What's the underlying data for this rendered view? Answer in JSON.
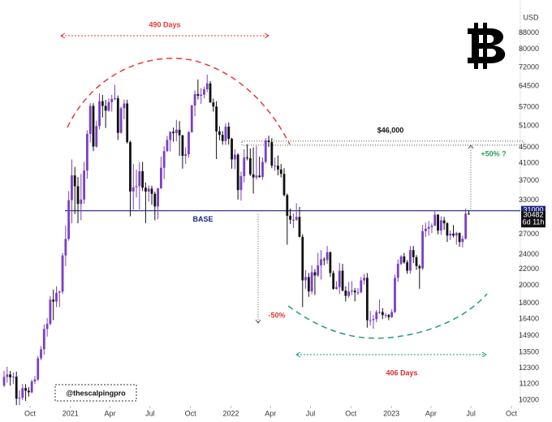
{
  "chart_data": {
    "type": "candlestick",
    "currency": "USD",
    "up_color": "#7b3fc4",
    "down_color": "#111111",
    "log_scale": true,
    "ylim": [
      9860,
      106900
    ],
    "yticks": [
      10200,
      11200,
      12300,
      13500,
      14900,
      16400,
      18000,
      20000,
      22000,
      24000,
      27000,
      33000,
      37000,
      41000,
      45000,
      51000,
      57000,
      64500,
      72000,
      80000,
      88000
    ],
    "xlim": [
      -1.33,
      167.5
    ],
    "xticks": [
      {
        "value": 8.43,
        "label": "Oct"
      },
      {
        "value": 21.57,
        "label": "2021"
      },
      {
        "value": 34.43,
        "label": "Apr"
      },
      {
        "value": 47.43,
        "label": "Jul"
      },
      {
        "value": 60.57,
        "label": "Oct"
      },
      {
        "value": 73.71,
        "label": "2022"
      },
      {
        "value": 86.57,
        "label": "Apr"
      },
      {
        "value": 99.57,
        "label": "Jul"
      },
      {
        "value": 112.71,
        "label": "Oct"
      },
      {
        "value": 125.86,
        "label": "2023"
      },
      {
        "value": 138.71,
        "label": "Apr"
      },
      {
        "value": 151.71,
        "label": "Jul"
      },
      {
        "value": 164.86,
        "label": "Oct"
      }
    ],
    "base": {
      "value": 31000,
      "label": "BASE"
    },
    "resistance": {
      "value": 46000,
      "label": "$46,000"
    },
    "countdown": "6d 11h",
    "annotations": {
      "top_span": "490 Days",
      "bottom_span": "406 Days",
      "upside": "+50% ?",
      "downside": "-50%",
      "handle": "@thescalpingpro"
    },
    "candles": [
      [
        11100,
        12100,
        11000,
        11680
      ],
      [
        11680,
        12400,
        11300,
        11850
      ],
      [
        11850,
        12100,
        11100,
        11650
      ],
      [
        11650,
        12000,
        11200,
        11700
      ],
      [
        11700,
        12050,
        9900,
        10280
      ],
      [
        10280,
        10800,
        9900,
        10330
      ],
      [
        10330,
        11200,
        10200,
        10940
      ],
      [
        10940,
        11200,
        10150,
        10770
      ],
      [
        10770,
        11000,
        10400,
        10670
      ],
      [
        10670,
        11500,
        10600,
        11380
      ],
      [
        11380,
        11750,
        11200,
        11500
      ],
      [
        11500,
        13200,
        11400,
        13030
      ],
      [
        13030,
        14000,
        12900,
        13740
      ],
      [
        13740,
        15900,
        13300,
        15480
      ],
      [
        15480,
        16500,
        14800,
        15960
      ],
      [
        15960,
        18800,
        15800,
        18400
      ],
      [
        18400,
        19500,
        16300,
        18180
      ],
      [
        18180,
        19900,
        17600,
        19150
      ],
      [
        19150,
        19400,
        17600,
        19270
      ],
      [
        19270,
        24200,
        19000,
        23850
      ],
      [
        23850,
        28400,
        22400,
        26270
      ],
      [
        26270,
        34800,
        26000,
        33000
      ],
      [
        33000,
        41900,
        28800,
        38150
      ],
      [
        38150,
        40100,
        30400,
        35800
      ],
      [
        35800,
        37800,
        28800,
        32260
      ],
      [
        32260,
        38500,
        29300,
        33110
      ],
      [
        33110,
        41300,
        32300,
        39250
      ],
      [
        39250,
        49700,
        37400,
        48700
      ],
      [
        48700,
        58300,
        46300,
        57400
      ],
      [
        57400,
        58300,
        44000,
        45200
      ],
      [
        45200,
        52600,
        44900,
        51000
      ],
      [
        51000,
        61800,
        50000,
        59000
      ],
      [
        59000,
        61200,
        53600,
        57400
      ],
      [
        57400,
        59500,
        50400,
        55800
      ],
      [
        55800,
        60000,
        55500,
        58700
      ],
      [
        58700,
        61200,
        55500,
        59800
      ],
      [
        59800,
        64900,
        59300,
        60000
      ],
      [
        60000,
        61000,
        47000,
        49000
      ],
      [
        49000,
        57200,
        48800,
        56600
      ],
      [
        56600,
        59600,
        53000,
        58200
      ],
      [
        58200,
        59500,
        46000,
        46400
      ],
      [
        46400,
        46800,
        30000,
        34700
      ],
      [
        34700,
        40800,
        31200,
        35600
      ],
      [
        35600,
        39500,
        33500,
        35800
      ],
      [
        35800,
        41200,
        31200,
        39100
      ],
      [
        39100,
        41300,
        34800,
        35500
      ],
      [
        35500,
        36600,
        28800,
        34700
      ],
      [
        34700,
        36000,
        32700,
        35300
      ],
      [
        35300,
        35900,
        32100,
        34250
      ],
      [
        34250,
        34700,
        29300,
        31800
      ],
      [
        31800,
        35400,
        29500,
        35400
      ],
      [
        35400,
        42600,
        35200,
        39900
      ],
      [
        39900,
        45300,
        37300,
        44000
      ],
      [
        44000,
        48100,
        43800,
        47000
      ],
      [
        47000,
        49400,
        43900,
        49300
      ],
      [
        49300,
        50500,
        46500,
        48900
      ],
      [
        48900,
        52900,
        46600,
        49900
      ],
      [
        49900,
        52500,
        42800,
        48300
      ],
      [
        48300,
        48400,
        39700,
        42800
      ],
      [
        42800,
        45000,
        40800,
        43200
      ],
      [
        43200,
        49500,
        42300,
        49200
      ],
      [
        49200,
        57800,
        49000,
        57500
      ],
      [
        57500,
        62900,
        54000,
        61500
      ],
      [
        61500,
        67000,
        59600,
        60900
      ],
      [
        60900,
        63700,
        58100,
        61300
      ],
      [
        61300,
        64200,
        60000,
        63300
      ],
      [
        63300,
        69000,
        62200,
        65500
      ],
      [
        65500,
        66400,
        58400,
        58600
      ],
      [
        58600,
        59900,
        55500,
        57200
      ],
      [
        57200,
        59000,
        42000,
        49400
      ],
      [
        49400,
        50900,
        46900,
        48400
      ],
      [
        48400,
        49500,
        45700,
        46700
      ],
      [
        46700,
        51800,
        45600,
        50800
      ],
      [
        50800,
        52100,
        45700,
        47300
      ],
      [
        47300,
        47600,
        39700,
        41900
      ],
      [
        41900,
        44500,
        39600,
        43100
      ],
      [
        43100,
        43500,
        33100,
        35000
      ],
      [
        35000,
        39000,
        32900,
        38000
      ],
      [
        38000,
        44500,
        36600,
        42400
      ],
      [
        42400,
        45800,
        41700,
        42200
      ],
      [
        42200,
        44700,
        38000,
        38400
      ],
      [
        38400,
        45000,
        34300,
        37700
      ],
      [
        37700,
        45400,
        37200,
        38100
      ],
      [
        38100,
        42600,
        37600,
        37800
      ],
      [
        37800,
        42400,
        37200,
        41300
      ],
      [
        41300,
        47500,
        40900,
        46800
      ],
      [
        46800,
        48200,
        45100,
        46400
      ],
      [
        46400,
        47500,
        39800,
        40400
      ],
      [
        40400,
        42400,
        39200,
        40400
      ],
      [
        40400,
        42900,
        38200,
        39500
      ],
      [
        39500,
        40800,
        37700,
        38500
      ],
      [
        38500,
        39800,
        33700,
        34000
      ],
      [
        34000,
        34300,
        25400,
        30100
      ],
      [
        30100,
        31400,
        28700,
        29400
      ],
      [
        29400,
        30500,
        28000,
        29400
      ],
      [
        29400,
        32400,
        29200,
        29900
      ],
      [
        29900,
        31700,
        26500,
        26600
      ],
      [
        26600,
        27000,
        17600,
        20600
      ],
      [
        20600,
        21900,
        19600,
        21000
      ],
      [
        21000,
        21500,
        18700,
        19300
      ],
      [
        19300,
        22500,
        19000,
        21600
      ],
      [
        21600,
        22000,
        18900,
        21200
      ],
      [
        21200,
        24200,
        21000,
        22500
      ],
      [
        22500,
        24600,
        20700,
        23300
      ],
      [
        23300,
        23600,
        22500,
        23200
      ],
      [
        23200,
        25200,
        22700,
        24300
      ],
      [
        24300,
        24400,
        21000,
        21500
      ],
      [
        21500,
        21800,
        19500,
        19600
      ],
      [
        19600,
        20500,
        19500,
        19800
      ],
      [
        19800,
        22800,
        19000,
        21800
      ],
      [
        21800,
        22700,
        19300,
        19400
      ],
      [
        19400,
        19900,
        18200,
        18800
      ],
      [
        18800,
        20400,
        18600,
        19300
      ],
      [
        19300,
        20500,
        18900,
        19400
      ],
      [
        19400,
        19700,
        18200,
        19200
      ],
      [
        19200,
        19700,
        18900,
        19200
      ],
      [
        19200,
        21000,
        19100,
        20600
      ],
      [
        20600,
        21400,
        20100,
        20900
      ],
      [
        20900,
        21500,
        15600,
        16300
      ],
      [
        16300,
        17200,
        15800,
        16300
      ],
      [
        16300,
        16800,
        15500,
        16400
      ],
      [
        16400,
        17300,
        16100,
        17100
      ],
      [
        17100,
        18400,
        16900,
        17100
      ],
      [
        17100,
        17500,
        16400,
        16800
      ],
      [
        16800,
        17000,
        16500,
        16800
      ],
      [
        16800,
        16900,
        16300,
        16600
      ],
      [
        16600,
        17400,
        16500,
        17100
      ],
      [
        17100,
        21300,
        17000,
        20900
      ],
      [
        20900,
        23300,
        20400,
        22700
      ],
      [
        22700,
        23900,
        22500,
        23700
      ],
      [
        23700,
        24200,
        22700,
        22900
      ],
      [
        22900,
        23200,
        21400,
        21800
      ],
      [
        21800,
        25200,
        21400,
        24600
      ],
      [
        24600,
        25200,
        22800,
        23600
      ],
      [
        23600,
        23900,
        21900,
        22400
      ],
      [
        22400,
        22600,
        19600,
        22100
      ],
      [
        22100,
        28500,
        21900,
        27500
      ],
      [
        27500,
        28900,
        26600,
        27900
      ],
      [
        27900,
        29200,
        26800,
        28200
      ],
      [
        28200,
        28800,
        27200,
        28400
      ],
      [
        28400,
        31000,
        28300,
        30300
      ],
      [
        30300,
        30400,
        27000,
        27600
      ],
      [
        27600,
        30000,
        26900,
        29300
      ],
      [
        29300,
        29900,
        27700,
        28800
      ],
      [
        28800,
        29000,
        25800,
        26800
      ],
      [
        26800,
        27600,
        26100,
        27100
      ],
      [
        27100,
        28500,
        26500,
        26800
      ],
      [
        26800,
        27400,
        25400,
        27200
      ],
      [
        27200,
        27300,
        25100,
        25800
      ],
      [
        25800,
        26800,
        25000,
        26300
      ],
      [
        26300,
        31400,
        26200,
        30500
      ],
      [
        30500,
        31000,
        30300,
        30482
      ]
    ]
  }
}
